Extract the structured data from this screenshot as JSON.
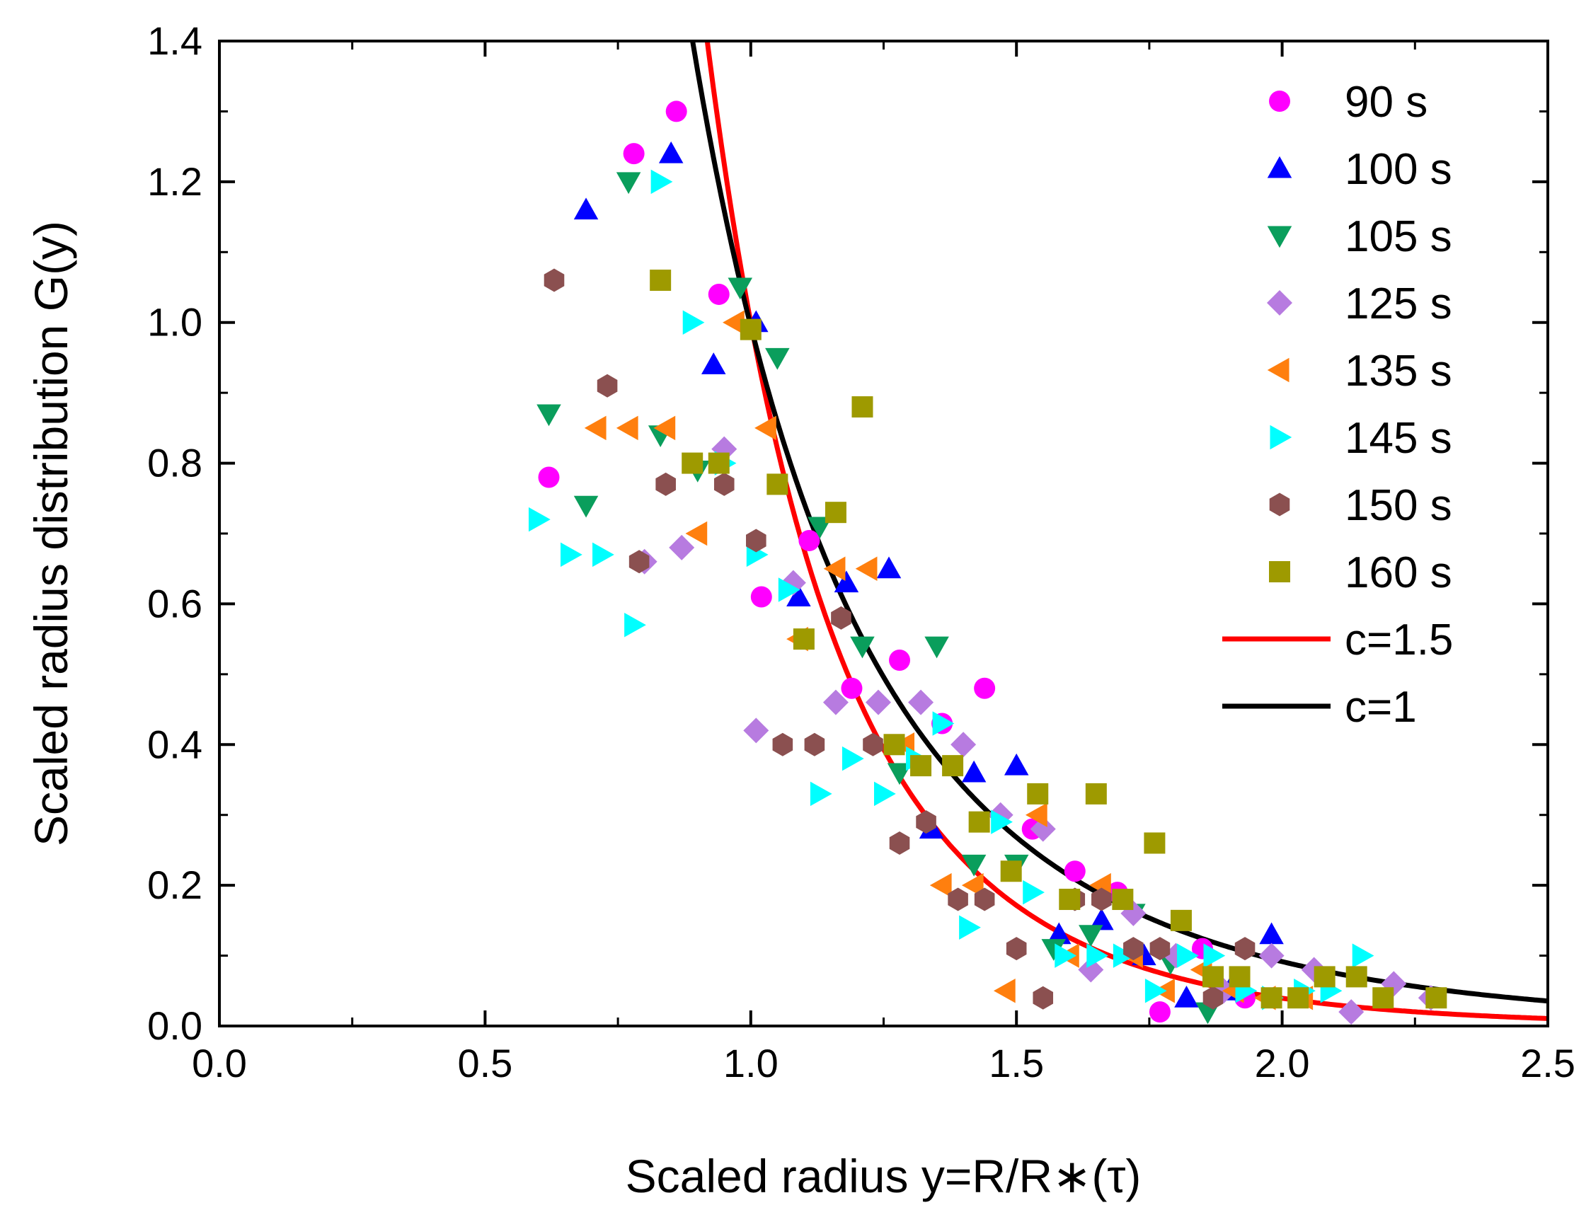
{
  "chart_data": {
    "type": "scatter",
    "title": "",
    "xlabel": "Scaled radius y=R/R∗(τ)",
    "ylabel": "Scaled radius distribution G(y)",
    "xlim": [
      0,
      2.5
    ],
    "ylim": [
      0,
      1.4
    ],
    "xticks": [
      "0.0",
      "0.5",
      "1.0",
      "1.5",
      "2.0",
      "2.5"
    ],
    "yticks": [
      "0.0",
      "0.2",
      "0.4",
      "0.6",
      "0.8",
      "1.0",
      "1.2",
      "1.4"
    ],
    "legend_position": "top-right",
    "series": [
      {
        "name": "90 s",
        "marker": "circle",
        "color": "#ff00ff",
        "x": [
          0.62,
          0.78,
          0.86,
          0.94,
          1.02,
          1.11,
          1.19,
          1.28,
          1.36,
          1.44,
          1.53,
          1.61,
          1.69,
          1.77,
          1.85,
          1.93
        ],
        "y": [
          0.78,
          1.24,
          1.3,
          1.04,
          0.61,
          0.69,
          0.48,
          0.52,
          0.43,
          0.48,
          0.28,
          0.22,
          0.19,
          0.02,
          0.11,
          0.04
        ]
      },
      {
        "name": "100 s",
        "marker": "triangle-up",
        "color": "#0000ff",
        "x": [
          0.69,
          0.85,
          0.93,
          1.01,
          1.09,
          1.18,
          1.26,
          1.34,
          1.42,
          1.5,
          1.58,
          1.66,
          1.74,
          1.82,
          1.9,
          1.98
        ],
        "y": [
          1.16,
          1.24,
          0.94,
          1.0,
          0.61,
          0.63,
          0.65,
          0.28,
          0.36,
          0.37,
          0.13,
          0.15,
          0.1,
          0.04,
          0.05,
          0.13
        ]
      },
      {
        "name": "105 s",
        "marker": "triangle-down",
        "color": "#0a9e5c",
        "x": [
          0.62,
          0.69,
          0.77,
          0.83,
          0.9,
          0.98,
          1.05,
          1.13,
          1.21,
          1.28,
          1.35,
          1.42,
          1.5,
          1.57,
          1.64,
          1.72,
          1.79,
          1.86
        ],
        "y": [
          0.87,
          0.74,
          1.2,
          0.84,
          0.79,
          1.05,
          0.95,
          0.71,
          0.54,
          0.36,
          0.54,
          0.23,
          0.23,
          0.11,
          0.13,
          0.16,
          0.09,
          0.02
        ]
      },
      {
        "name": "125 s",
        "marker": "diamond",
        "color": "#b77be0",
        "x": [
          0.8,
          0.87,
          0.95,
          1.01,
          1.08,
          1.16,
          1.24,
          1.32,
          1.4,
          1.47,
          1.55,
          1.64,
          1.72,
          1.8,
          1.89,
          1.98,
          2.06,
          2.13,
          2.21,
          2.28
        ],
        "y": [
          0.66,
          0.68,
          0.82,
          0.42,
          0.63,
          0.46,
          0.46,
          0.46,
          0.4,
          0.3,
          0.28,
          0.08,
          0.16,
          0.1,
          0.05,
          0.1,
          0.08,
          0.02,
          0.06,
          0.04
        ]
      },
      {
        "name": "135 s",
        "marker": "triangle-left",
        "color": "#ff7f0e",
        "x": [
          0.71,
          0.77,
          0.84,
          0.9,
          0.97,
          1.03,
          1.09,
          1.16,
          1.22,
          1.29,
          1.36,
          1.42,
          1.48,
          1.54,
          1.6,
          1.66,
          1.72,
          1.78,
          1.85,
          1.91,
          1.97,
          2.04
        ],
        "y": [
          0.85,
          0.85,
          0.85,
          0.7,
          1.0,
          0.85,
          0.55,
          0.65,
          0.65,
          0.4,
          0.2,
          0.2,
          0.05,
          0.3,
          0.1,
          0.2,
          0.1,
          0.05,
          0.08,
          0.05,
          0.04,
          0.04
        ]
      },
      {
        "name": "145 s",
        "marker": "triangle-right",
        "color": "#00ffff",
        "x": [
          0.6,
          0.66,
          0.72,
          0.78,
          0.83,
          0.89,
          0.95,
          1.01,
          1.07,
          1.13,
          1.19,
          1.25,
          1.31,
          1.36,
          1.41,
          1.47,
          1.53,
          1.59,
          1.65,
          1.7,
          1.76,
          1.82,
          1.87,
          1.93,
          1.98,
          2.04,
          2.09,
          2.15
        ],
        "y": [
          0.72,
          0.67,
          0.67,
          0.57,
          1.2,
          1.0,
          0.8,
          0.67,
          0.62,
          0.33,
          0.38,
          0.33,
          0.38,
          0.43,
          0.14,
          0.29,
          0.19,
          0.1,
          0.1,
          0.1,
          0.05,
          0.1,
          0.1,
          0.05,
          0.04,
          0.05,
          0.05,
          0.1
        ]
      },
      {
        "name": "150 s",
        "marker": "hexagon",
        "color": "#8b5050",
        "x": [
          0.63,
          0.73,
          0.79,
          0.84,
          0.95,
          1.01,
          1.06,
          1.12,
          1.17,
          1.23,
          1.28,
          1.33,
          1.39,
          1.44,
          1.5,
          1.55,
          1.61,
          1.66,
          1.72,
          1.77,
          1.87,
          1.93
        ],
        "y": [
          1.06,
          0.91,
          0.66,
          0.77,
          0.77,
          0.69,
          0.4,
          0.4,
          0.58,
          0.4,
          0.26,
          0.29,
          0.18,
          0.18,
          0.11,
          0.04,
          0.18,
          0.18,
          0.11,
          0.11,
          0.04,
          0.11
        ]
      },
      {
        "name": "160 s",
        "marker": "square",
        "color": "#9e9a00",
        "x": [
          0.83,
          0.89,
          0.94,
          1.0,
          1.05,
          1.1,
          1.16,
          1.21,
          1.27,
          1.32,
          1.38,
          1.43,
          1.49,
          1.54,
          1.6,
          1.65,
          1.7,
          1.76,
          1.81,
          1.87,
          1.92,
          1.98,
          2.03,
          2.08,
          2.14,
          2.19,
          2.29
        ],
        "y": [
          1.06,
          0.8,
          0.8,
          0.99,
          0.77,
          0.55,
          0.73,
          0.88,
          0.4,
          0.37,
          0.37,
          0.29,
          0.22,
          0.33,
          0.18,
          0.33,
          0.18,
          0.26,
          0.15,
          0.07,
          0.07,
          0.04,
          0.04,
          0.07,
          0.07,
          0.04,
          0.04
        ]
      }
    ],
    "curves": [
      {
        "name": "c=1.5",
        "color": "#ff0000",
        "c": 1.5,
        "x_start": 0.77
      },
      {
        "name": "c=1",
        "color": "#000000",
        "c": 1,
        "x_start": 0.75
      }
    ]
  }
}
